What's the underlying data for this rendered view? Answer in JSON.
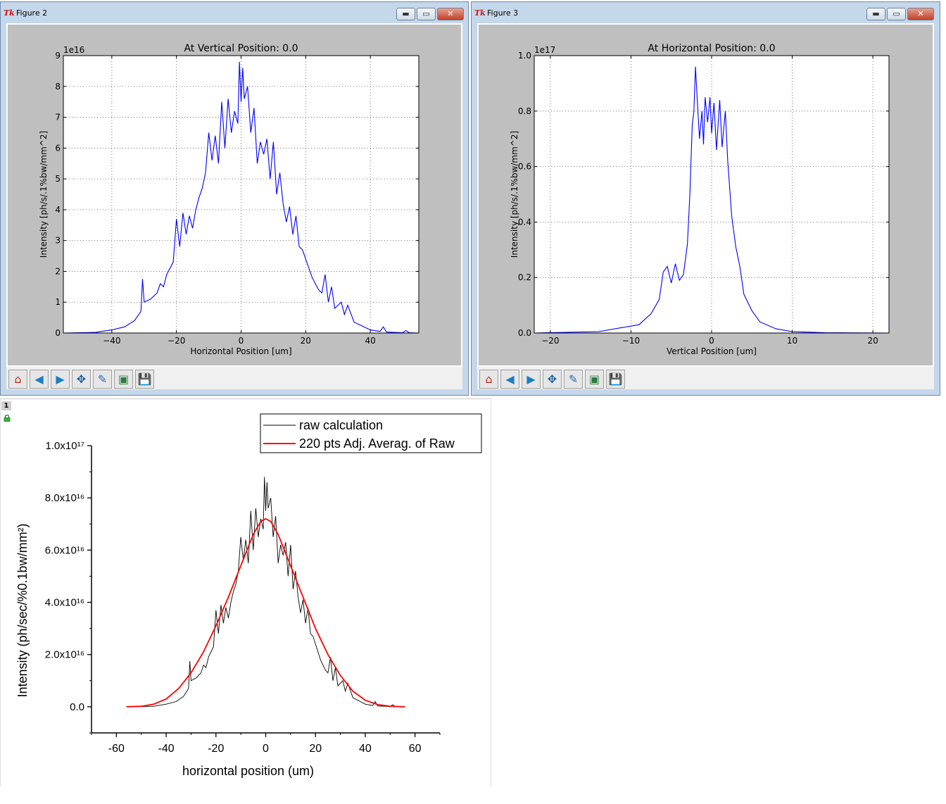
{
  "windows": [
    {
      "title": "Figure 2",
      "icon": "tk-feather-icon",
      "controls": [
        "minimize",
        "maximize",
        "close"
      ],
      "toolbar": [
        "home-icon",
        "back-icon",
        "forward-icon",
        "pan-icon",
        "zoom-icon",
        "subplots-icon",
        "save-icon"
      ]
    },
    {
      "title": "Figure 3",
      "icon": "tk-feather-icon",
      "controls": [
        "minimize",
        "maximize",
        "close"
      ],
      "toolbar": [
        "home-icon",
        "back-icon",
        "forward-icon",
        "pan-icon",
        "zoom-icon",
        "subplots-icon",
        "save-icon"
      ]
    }
  ],
  "bottom_panel": {
    "page_number": "1",
    "lock_icon": "lock-icon"
  },
  "chart_data": [
    {
      "type": "line",
      "title": "At Vertical Position: 0.0",
      "xlabel": "Horizontal Position [um]",
      "ylabel": "Intensity [ph/s/.1%bw/mm^2]",
      "y_offset_text": "1e16",
      "xlim": [
        -55,
        55
      ],
      "ylim": [
        0,
        9
      ],
      "xticks": [
        "−40",
        "−20",
        "0",
        "20",
        "40"
      ],
      "yticks": [
        "0",
        "1",
        "2",
        "3",
        "4",
        "5",
        "6",
        "7",
        "8",
        "9"
      ],
      "grid": true,
      "color": "#0000ff",
      "series": [
        {
          "x": [
            -55,
            -45,
            -40,
            -36,
            -33,
            -31,
            -30.5,
            -30,
            -28,
            -26,
            -25,
            -24,
            -23,
            -21,
            -20,
            -19,
            -18,
            -17,
            -16,
            -15,
            -14,
            -13,
            -12,
            -11,
            -10,
            -9,
            -8,
            -7,
            -6,
            -5,
            -4,
            -3,
            -2,
            -1,
            -0.5,
            0,
            0.5,
            1,
            2,
            3,
            4,
            5,
            6,
            7,
            8,
            9,
            10,
            11,
            12,
            13,
            14,
            15,
            16,
            17,
            18,
            19,
            20,
            21,
            22,
            23,
            24,
            25,
            26,
            27,
            28,
            29,
            30,
            31,
            32,
            33,
            35,
            38,
            40,
            43,
            44,
            45,
            50,
            51,
            52,
            55
          ],
          "y": [
            0,
            0.02,
            0.1,
            0.2,
            0.4,
            0.7,
            1.75,
            1.0,
            1.1,
            1.3,
            1.6,
            1.5,
            1.9,
            2.3,
            3.7,
            2.8,
            3.9,
            3.2,
            3.8,
            3.4,
            4.0,
            4.4,
            4.7,
            5.2,
            6.5,
            5.6,
            6.4,
            5.5,
            7.5,
            6.0,
            7.6,
            6.5,
            7.2,
            6.8,
            8.8,
            7.5,
            8.6,
            7.6,
            8.0,
            6.5,
            7.3,
            5.5,
            6.2,
            5.8,
            6.3,
            5.0,
            6.2,
            4.5,
            5.2,
            4.2,
            3.6,
            4.1,
            3.2,
            3.8,
            2.8,
            2.7,
            2.4,
            2.1,
            1.8,
            1.6,
            1.4,
            1.3,
            1.9,
            1.0,
            1.5,
            0.8,
            0.9,
            1.0,
            0.6,
            0.9,
            0.35,
            0.2,
            0.1,
            0.05,
            0.2,
            0.03,
            0.01,
            0.08,
            0.01,
            0.0
          ]
        }
      ]
    },
    {
      "type": "line",
      "title": "At Horizontal Position: 0.0",
      "xlabel": "Vertical Position [um]",
      "ylabel": "Intensity [ph/s/.1%bw/mm^2]",
      "y_offset_text": "1e17",
      "xlim": [
        -22,
        22
      ],
      "ylim": [
        0,
        1.0
      ],
      "xticks": [
        "−20",
        "−10",
        "0",
        "10",
        "20"
      ],
      "yticks": [
        "0.0",
        "0.2",
        "0.4",
        "0.6",
        "0.8",
        "1.0"
      ],
      "grid": true,
      "color": "#0000ff",
      "series": [
        {
          "x": [
            -22,
            -14,
            -11,
            -9,
            -7.5,
            -6.5,
            -6,
            -5.5,
            -5,
            -4.5,
            -4,
            -3.5,
            -3,
            -2.7,
            -2.4,
            -2.2,
            -2,
            -1.8,
            -1.5,
            -1.2,
            -1,
            -0.8,
            -0.5,
            -0.2,
            0,
            0.3,
            0.6,
            1,
            1.3,
            1.7,
            2,
            2.5,
            3,
            3.5,
            4,
            5,
            6,
            8,
            10,
            14,
            22
          ],
          "y": [
            0,
            0.005,
            0.02,
            0.03,
            0.07,
            0.12,
            0.22,
            0.24,
            0.18,
            0.25,
            0.19,
            0.21,
            0.32,
            0.5,
            0.75,
            0.8,
            0.96,
            0.85,
            0.7,
            0.8,
            0.68,
            0.85,
            0.76,
            0.85,
            0.72,
            0.83,
            0.66,
            0.84,
            0.67,
            0.8,
            0.62,
            0.42,
            0.31,
            0.24,
            0.14,
            0.08,
            0.04,
            0.015,
            0.005,
            0.001,
            0
          ]
        }
      ]
    },
    {
      "type": "line",
      "title": "",
      "xlabel": "horizontal position (um)",
      "ylabel": "Intensity (ph/sec/%0.1bw/mm²)",
      "xlim": [
        -70,
        70
      ],
      "ylim": [
        -1e+16,
        1e+17
      ],
      "xticks": [
        "-60",
        "-40",
        "-20",
        "0",
        "20",
        "40",
        "60"
      ],
      "yticks": [
        "0.0",
        "2.0x10¹⁶",
        "4.0x10¹⁶",
        "6.0x10¹⁶",
        "8.0x10¹⁶",
        "1.0x10¹⁷"
      ],
      "legend_position": "top",
      "grid": false,
      "series": [
        {
          "name": "raw calculation",
          "color": "#000000",
          "x": [
            -55,
            -45,
            -40,
            -36,
            -33,
            -31,
            -30.5,
            -30,
            -28,
            -26,
            -25,
            -24,
            -23,
            -21,
            -20,
            -19,
            -18,
            -17,
            -16,
            -15,
            -14,
            -13,
            -12,
            -11,
            -10,
            -9,
            -8,
            -7,
            -6,
            -5,
            -4,
            -3,
            -2,
            -1,
            -0.5,
            0,
            0.5,
            1,
            2,
            3,
            4,
            5,
            6,
            7,
            8,
            9,
            10,
            11,
            12,
            13,
            14,
            15,
            16,
            17,
            18,
            19,
            20,
            21,
            22,
            23,
            24,
            25,
            26,
            27,
            28,
            29,
            30,
            31,
            32,
            33,
            35,
            38,
            40,
            43,
            44,
            45,
            50,
            51,
            52,
            55
          ],
          "y": [
            0,
            0.02,
            0.1,
            0.2,
            0.4,
            0.7,
            1.75,
            1.0,
            1.1,
            1.3,
            1.6,
            1.5,
            1.9,
            2.3,
            3.7,
            2.8,
            3.9,
            3.2,
            3.8,
            3.4,
            4.0,
            4.4,
            4.7,
            5.2,
            6.5,
            5.6,
            6.4,
            5.5,
            7.5,
            6.0,
            7.6,
            6.5,
            7.2,
            6.8,
            8.8,
            7.5,
            8.6,
            7.6,
            8.0,
            6.5,
            7.3,
            5.5,
            6.2,
            5.8,
            6.3,
            5.0,
            6.2,
            4.5,
            5.2,
            4.2,
            3.6,
            4.1,
            3.2,
            3.8,
            2.8,
            2.7,
            2.4,
            2.1,
            1.8,
            1.6,
            1.4,
            1.3,
            1.9,
            1.0,
            1.5,
            0.8,
            0.9,
            1.0,
            0.6,
            0.9,
            0.35,
            0.2,
            0.1,
            0.05,
            0.2,
            0.03,
            0.01,
            0.08,
            0.01,
            0.0
          ],
          "y_scale": 1e+16
        },
        {
          "name": "220 pts Adj. Averag. of Raw",
          "color": "#ff0000",
          "x": [
            -56,
            -50,
            -45,
            -40,
            -35,
            -30,
            -25,
            -20,
            -15,
            -10,
            -5,
            -2,
            0,
            2,
            5,
            10,
            15,
            20,
            25,
            30,
            35,
            40,
            45,
            50,
            56
          ],
          "y": [
            0,
            0.02,
            0.1,
            0.3,
            0.7,
            1.3,
            2.1,
            3.1,
            4.2,
            5.4,
            6.6,
            7.1,
            7.2,
            7.1,
            6.6,
            5.4,
            4.2,
            3.0,
            2.0,
            1.2,
            0.6,
            0.25,
            0.08,
            0.02,
            0
          ],
          "y_scale": 1e+16
        }
      ]
    }
  ]
}
